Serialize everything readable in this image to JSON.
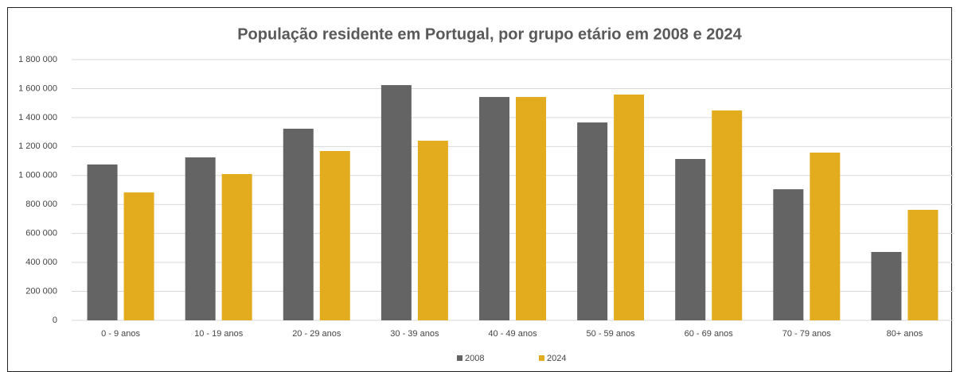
{
  "chart_data": {
    "type": "bar",
    "title": "População residente em Portugal, por grupo etário em 2008 e 2024",
    "categories": [
      "0 - 9 anos",
      "10 - 19 anos",
      "20 - 29 anos",
      "30 - 39 anos",
      "40 - 49 anos",
      "50 - 59 anos",
      "60 - 69 anos",
      "70 - 79 anos",
      "80+ anos"
    ],
    "series": [
      {
        "name": "2008",
        "color": "#646464",
        "values": [
          1076000,
          1125000,
          1323000,
          1624000,
          1542000,
          1366000,
          1114000,
          905000,
          472000
        ]
      },
      {
        "name": "2024",
        "color": "#e3ab1e",
        "values": [
          883000,
          1010000,
          1169000,
          1240000,
          1542000,
          1559000,
          1449000,
          1158000,
          763000
        ]
      }
    ],
    "ylim": [
      0,
      1800000
    ],
    "yticks": [
      0,
      {
        "value": 200000,
        "label": "200 000"
      },
      {
        "value": 400000,
        "label": "400 000"
      },
      {
        "value": 600000,
        "label": "600 000"
      },
      {
        "value": 800000,
        "label": "800 000"
      },
      {
        "value": 1000000,
        "label": "1 000 000"
      },
      {
        "value": 1200000,
        "label": "1 200 000"
      },
      {
        "value": 1400000,
        "label": "1 400 000"
      },
      {
        "value": 1600000,
        "label": "1 600 000"
      },
      {
        "value": 1800000,
        "label": "1 800 000"
      }
    ],
    "grid": true,
    "legend": "bottom"
  }
}
